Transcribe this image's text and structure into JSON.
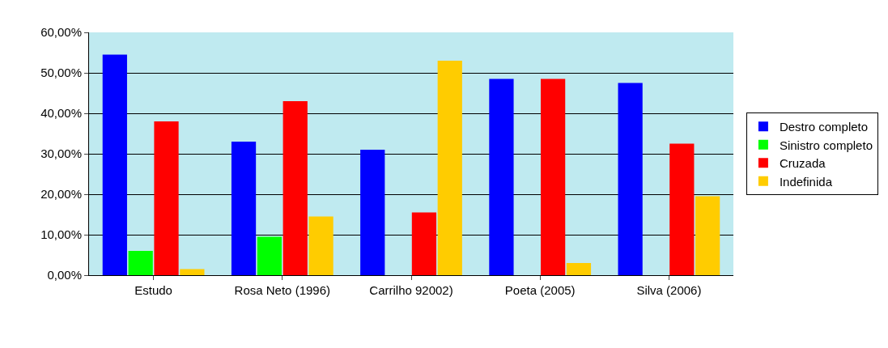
{
  "chart_data": {
    "type": "bar",
    "categories": [
      "Estudo",
      "Rosa Neto (1996)",
      "Carrilho 92002)",
      "Poeta (2005)",
      "Silva (2006)"
    ],
    "series": [
      {
        "name": "Destro completo",
        "color": "#0000ff",
        "values": [
          54.5,
          33,
          31,
          48.5,
          47.5
        ]
      },
      {
        "name": "Sinistro completo",
        "color": "#00ff00",
        "values": [
          6,
          9.5,
          0,
          0,
          0
        ]
      },
      {
        "name": "Cruzada",
        "color": "#ff0000",
        "values": [
          38,
          43,
          15.5,
          48.5,
          32.5
        ]
      },
      {
        "name": "Indefinida",
        "color": "#ffcc00",
        "values": [
          1.5,
          14.5,
          53,
          3,
          19.5
        ]
      }
    ],
    "ylim": [
      0,
      60
    ],
    "yticks": [
      {
        "value": 0,
        "label": "0,00%"
      },
      {
        "value": 10,
        "label": "10,00%"
      },
      {
        "value": 20,
        "label": "20,00%"
      },
      {
        "value": 30,
        "label": "30,00%"
      },
      {
        "value": 40,
        "label": "40,00%"
      },
      {
        "value": 50,
        "label": "50,00%"
      },
      {
        "value": 60,
        "label": "60,00%"
      }
    ],
    "grid": "y",
    "legend": "right"
  }
}
